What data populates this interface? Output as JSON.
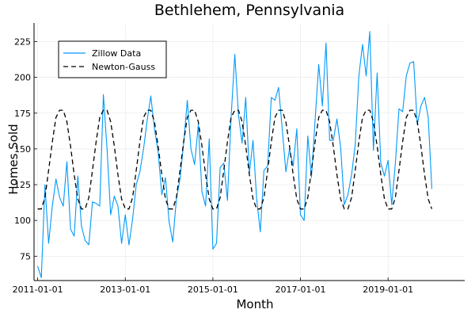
{
  "chart_data": {
    "type": "line",
    "title": "Bethlehem, Pennsylvania",
    "xlabel": "Month",
    "ylabel": "Homes Sold",
    "x_ticks": [
      "2011-01-01",
      "2013-01-01",
      "2015-01-01",
      "2017-01-01",
      "2019-01-01"
    ],
    "y_ticks": [
      75,
      100,
      125,
      150,
      175,
      200,
      225
    ],
    "xlim": [
      "2010-12-01",
      "2020-10-01"
    ],
    "ylim": [
      58,
      238
    ],
    "grid": true,
    "legend_position": "top-left",
    "x_start": "2011-01-01",
    "x_step": "month",
    "series": [
      {
        "name": "Zillow Data",
        "color": "#009af9",
        "style": "solid",
        "values": [
          68,
          60,
          125,
          84,
          110,
          129,
          116,
          110,
          141,
          94,
          89,
          131,
          96,
          86,
          83,
          113,
          112,
          110,
          188,
          150,
          104,
          117,
          110,
          84,
          104,
          83,
          101,
          125,
          134,
          150,
          170,
          187,
          164,
          148,
          118,
          130,
          99,
          85,
          115,
          129,
          154,
          184,
          150,
          139,
          167,
          120,
          110,
          157,
          80,
          84,
          137,
          140,
          114,
          172,
          216,
          174,
          154,
          186,
          133,
          156,
          115,
          92,
          135,
          138,
          186,
          184,
          193,
          164,
          134,
          150,
          138,
          164,
          104,
          100,
          159,
          130,
          170,
          209,
          180,
          224,
          156,
          156,
          171,
          151,
          111,
          118,
          132,
          153,
          201,
          223,
          201,
          232,
          149,
          203,
          140,
          131,
          142,
          111,
          140,
          178,
          176,
          201,
          210,
          211,
          167,
          180,
          186,
          172,
          122
        ]
      },
      {
        "name": "Newton-Gauss",
        "color": "#000000",
        "style": "dashed",
        "values": [
          108,
          108,
          116,
          135,
          155,
          172,
          177,
          177,
          169,
          152,
          132,
          115,
          108,
          108,
          116,
          135,
          155,
          172,
          177,
          177,
          169,
          152,
          132,
          115,
          108,
          108,
          116,
          135,
          155,
          172,
          177,
          177,
          169,
          152,
          132,
          115,
          108,
          108,
          116,
          135,
          155,
          172,
          177,
          177,
          169,
          152,
          132,
          115,
          108,
          108,
          116,
          135,
          155,
          172,
          177,
          177,
          169,
          152,
          132,
          115,
          108,
          108,
          116,
          135,
          155,
          172,
          177,
          177,
          169,
          152,
          132,
          115,
          108,
          108,
          116,
          135,
          155,
          172,
          177,
          177,
          169,
          152,
          132,
          115,
          108,
          108,
          116,
          135,
          155,
          172,
          177,
          177,
          169,
          152,
          132,
          115,
          108,
          108,
          116,
          135,
          155,
          172,
          177,
          177,
          169,
          152,
          132,
          115,
          108
        ]
      }
    ]
  }
}
